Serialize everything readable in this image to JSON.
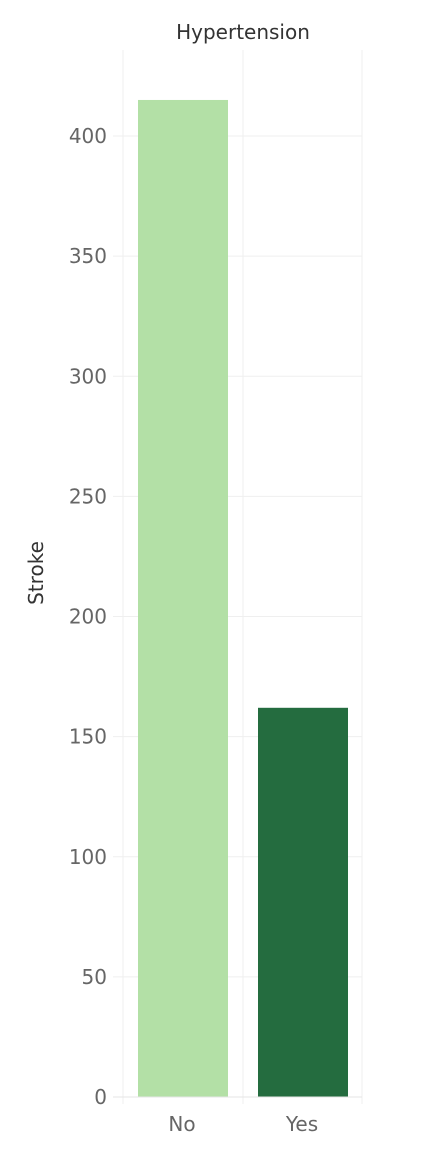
{
  "chart_data": {
    "type": "bar",
    "title": "Hypertension",
    "xlabel": "",
    "ylabel": "Stroke",
    "categories": [
      "No",
      "Yes"
    ],
    "values": [
      415,
      162
    ],
    "colors": [
      "#b3e0a6",
      "#246c3f"
    ],
    "ylim": [
      0,
      400
    ],
    "yticks": [
      0,
      50,
      100,
      150,
      200,
      250,
      300,
      350,
      400
    ],
    "grid": true,
    "legend": "none"
  }
}
